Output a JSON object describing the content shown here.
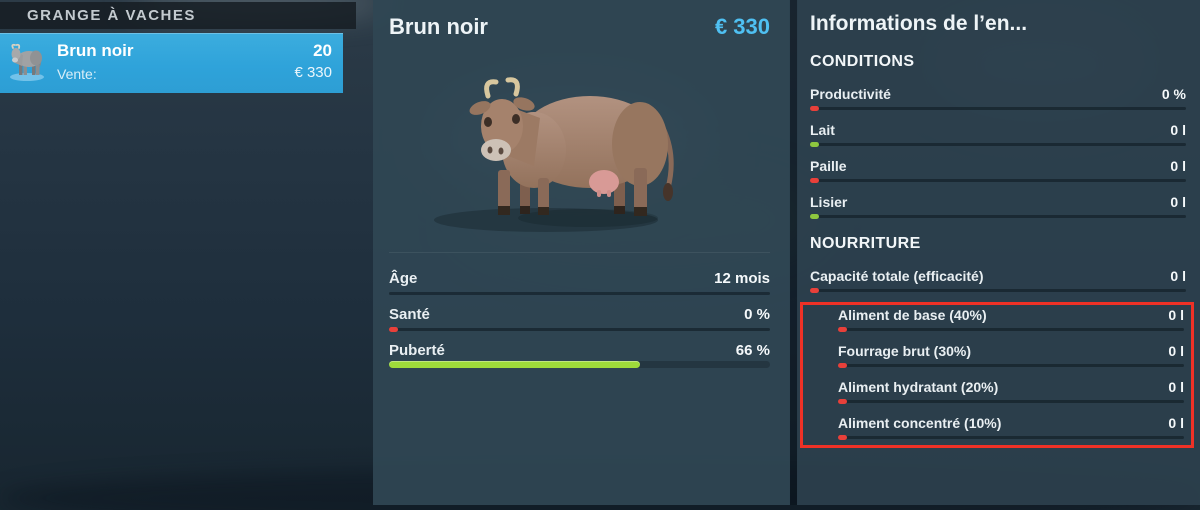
{
  "colors": {
    "selection_blue": "#35a7de",
    "price_cyan": "#4fc0f2",
    "bar_green": "#9edb3a",
    "dot_green": "#8ec73f",
    "dot_red": "#e8403a",
    "highlight_red": "#ef3126"
  },
  "barn_list": {
    "header": "GRANGE À VACHES",
    "selected_item": {
      "name": "Brun noir",
      "count": "20",
      "sale_label": "Vente:",
      "sale_price": "€ 330"
    }
  },
  "detail_panel": {
    "title": "Brun noir",
    "price": "€ 330",
    "stats": [
      {
        "label": "Âge",
        "value": "12 mois",
        "dot": "none",
        "fill": 0
      },
      {
        "label": "Santé",
        "value": "0 %",
        "dot": "red",
        "fill": 0
      },
      {
        "label": "Puberté",
        "value": "66 %",
        "dot": "green",
        "fill": 66
      }
    ]
  },
  "info_panel": {
    "title": "Informations de l’en...",
    "conditions": {
      "header": "CONDITIONS",
      "rows": [
        {
          "label": "Productivité",
          "value": "0 %",
          "dot": "red"
        },
        {
          "label": "Lait",
          "value": "0 l",
          "dot": "green"
        },
        {
          "label": "Paille",
          "value": "0 l",
          "dot": "red"
        },
        {
          "label": "Lisier",
          "value": "0 l",
          "dot": "green"
        }
      ]
    },
    "food": {
      "header": "NOURRITURE",
      "total_row": {
        "label": "Capacité totale (efficacité)",
        "value": "0 l",
        "dot": "red"
      },
      "highlighted_rows": [
        {
          "label": "Aliment de base (40%)",
          "value": "0 l",
          "dot": "red"
        },
        {
          "label": "Fourrage brut (30%)",
          "value": "0 l",
          "dot": "red"
        },
        {
          "label": "Aliment hydratant (20%)",
          "value": "0 l",
          "dot": "red"
        },
        {
          "label": "Aliment concentré (10%)",
          "value": "0 l",
          "dot": "red"
        }
      ]
    }
  }
}
